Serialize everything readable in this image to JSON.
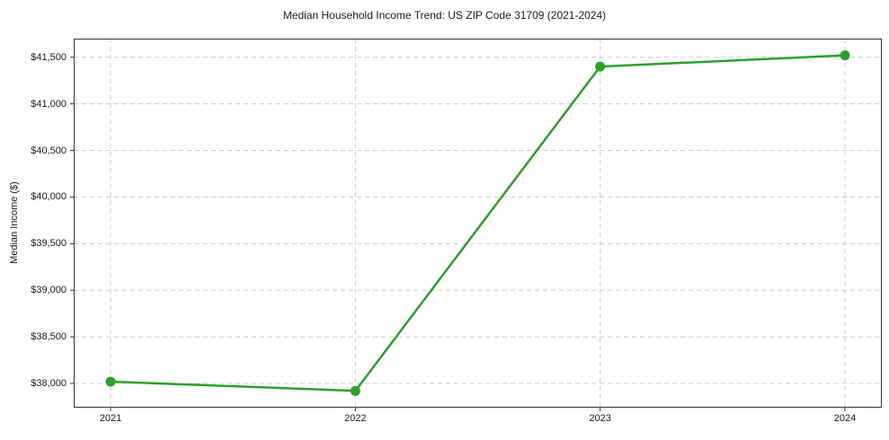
{
  "chart_data": {
    "type": "line",
    "title": "Median Household Income Trend: US ZIP Code 31709 (2021-2024)",
    "xlabel": "",
    "ylabel": "Median Income ($)",
    "categories": [
      "2021",
      "2022",
      "2023",
      "2024"
    ],
    "values": [
      38020,
      37920,
      41400,
      41520
    ],
    "ylim": [
      37740,
      41700
    ],
    "yticks": [
      38000,
      38500,
      39000,
      39500,
      40000,
      40500,
      41000,
      41500
    ],
    "ytick_labels": [
      "$38,000",
      "$38,500",
      "$39,000",
      "$39,500",
      "$40,000",
      "$40,500",
      "$41,000",
      "$41,500"
    ],
    "grid": true,
    "grid_style": "dashed",
    "legend": "none",
    "colors": {
      "line": "#2ca02c",
      "marker": "#2ca02c",
      "grid": "#cccccc",
      "spine": "#333333",
      "text": "#1a1a1a",
      "background": "#ffffff"
    }
  }
}
